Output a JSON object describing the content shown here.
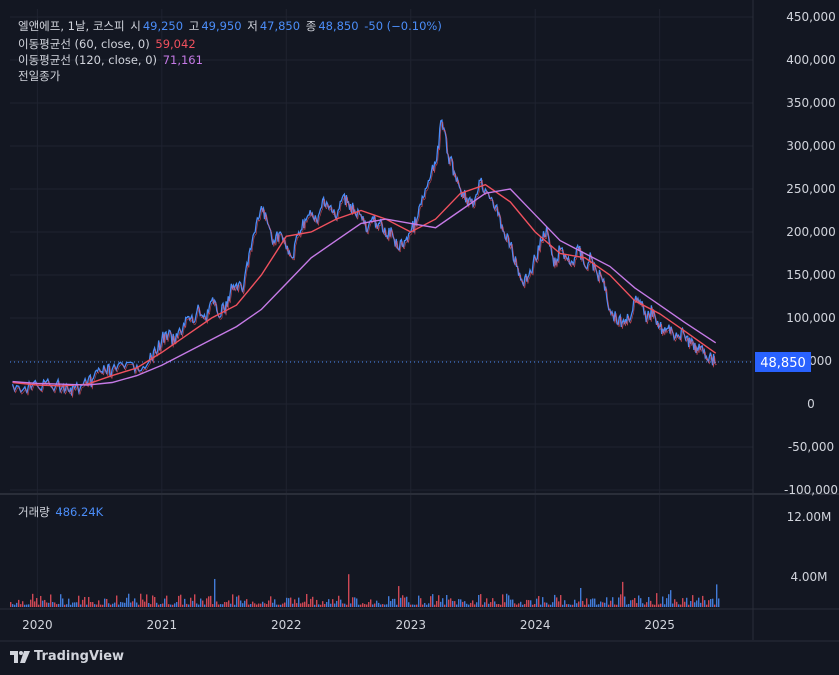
{
  "header": {
    "symbol_label": "엘앤에프, 1날, 코스피",
    "open_label": "시",
    "open_value": "49,250",
    "high_label": "고",
    "high_value": "49,950",
    "low_label": "저",
    "low_value": "47,850",
    "close_label": "종",
    "close_value": "48,850",
    "change_value": "-50 (−0.10%)"
  },
  "indicators": {
    "ma60_label": "이동평균선 (60, close, 0)",
    "ma60_value": "59,042",
    "ma120_label": "이동평균선 (120, close, 0)",
    "ma120_value": "71,161",
    "prev_close_label": "전일종가"
  },
  "volume": {
    "label": "거래량",
    "value": "486.24K"
  },
  "price_tag": "48,850",
  "brand": "TradingView",
  "colors": {
    "background": "#131722",
    "up": "#4b8df8",
    "down": "#f0515e",
    "ma60": "#f0515e",
    "ma120": "#c57ae6",
    "text": "#d1d4dc",
    "price_tag_bg": "#2962ff"
  },
  "chart_data": {
    "type": "line",
    "price_axis": {
      "ylim": [
        -100000,
        450000
      ],
      "ticks": [
        "450,000",
        "400,000",
        "350,000",
        "300,000",
        "250,000",
        "200,000",
        "150,000",
        "100,000",
        "50,000",
        "0",
        "-50,000",
        "-100,000"
      ],
      "tick_values": [
        450000,
        400000,
        350000,
        300000,
        250000,
        200000,
        150000,
        100000,
        50000,
        0,
        -50000,
        -100000
      ]
    },
    "volume_axis": {
      "ticks": [
        "12.00M",
        "4.00M"
      ],
      "tick_values": [
        12000000,
        4000000
      ]
    },
    "x_ticks": [
      "2020",
      "2021",
      "2022",
      "2023",
      "2024",
      "2025"
    ],
    "x_tick_values": [
      2020,
      2021,
      2022,
      2023,
      2024,
      2025
    ],
    "xlim": [
      2019.78,
      2025.75
    ],
    "last_close": 48850,
    "series": [
      {
        "key": "close",
        "x": [
          2019.8,
          2019.9,
          2020.0,
          2020.1,
          2020.2,
          2020.25,
          2020.3,
          2020.4,
          2020.45,
          2020.5,
          2020.55,
          2020.6,
          2020.7,
          2020.8,
          2020.9,
          2020.95,
          2021.0,
          2021.05,
          2021.1,
          2021.15,
          2021.2,
          2021.25,
          2021.3,
          2021.35,
          2021.4,
          2021.45,
          2021.5,
          2021.55,
          2021.6,
          2021.65,
          2021.7,
          2021.75,
          2021.8,
          2021.85,
          2021.9,
          2021.95,
          2022.0,
          2022.05,
          2022.1,
          2022.15,
          2022.2,
          2022.25,
          2022.3,
          2022.35,
          2022.4,
          2022.45,
          2022.5,
          2022.55,
          2022.6,
          2022.65,
          2022.7,
          2022.75,
          2022.8,
          2022.85,
          2022.9,
          2022.95,
          2023.0,
          2023.05,
          2023.1,
          2023.15,
          2023.2,
          2023.25,
          2023.3,
          2023.35,
          2023.4,
          2023.45,
          2023.5,
          2023.55,
          2023.6,
          2023.65,
          2023.7,
          2023.75,
          2023.8,
          2023.85,
          2023.9,
          2023.95,
          2024.0,
          2024.05,
          2024.1,
          2024.15,
          2024.2,
          2024.25,
          2024.3,
          2024.35,
          2024.4,
          2024.45,
          2024.5,
          2024.55,
          2024.6,
          2024.65,
          2024.7,
          2024.75,
          2024.8,
          2024.85,
          2024.9,
          2024.95,
          2025.0,
          2025.05,
          2025.1,
          2025.15,
          2025.2,
          2025.25,
          2025.3,
          2025.35,
          2025.4,
          2025.45
        ],
        "y": [
          23000,
          20000,
          21000,
          22000,
          20000,
          15000,
          18000,
          22000,
          30000,
          40000,
          38000,
          40000,
          42000,
          45000,
          50000,
          60000,
          75000,
          80000,
          72000,
          85000,
          100000,
          95000,
          110000,
          100000,
          120000,
          105000,
          110000,
          130000,
          140000,
          130000,
          175000,
          200000,
          230000,
          210000,
          190000,
          200000,
          180000,
          170000,
          200000,
          215000,
          220000,
          210000,
          240000,
          230000,
          215000,
          240000,
          235000,
          225000,
          220000,
          200000,
          215000,
          210000,
          195000,
          200000,
          180000,
          190000,
          200000,
          215000,
          240000,
          260000,
          280000,
          330000,
          290000,
          270000,
          250000,
          240000,
          230000,
          260000,
          250000,
          240000,
          220000,
          200000,
          185000,
          160000,
          140000,
          150000,
          170000,
          190000,
          200000,
          160000,
          180000,
          170000,
          165000,
          180000,
          160000,
          170000,
          150000,
          145000,
          110000,
          100000,
          95000,
          100000,
          120000,
          115000,
          100000,
          110000,
          90000,
          85000,
          85000,
          80000,
          80000,
          70000,
          65000,
          60000,
          55000,
          48850
        ]
      },
      {
        "key": "ma60",
        "x": [
          2019.8,
          2020.0,
          2020.2,
          2020.4,
          2020.6,
          2020.8,
          2021.0,
          2021.2,
          2021.4,
          2021.6,
          2021.8,
          2022.0,
          2022.2,
          2022.4,
          2022.6,
          2022.8,
          2023.0,
          2023.2,
          2023.4,
          2023.6,
          2023.8,
          2024.0,
          2024.2,
          2024.4,
          2024.6,
          2024.8,
          2025.0,
          2025.2,
          2025.45
        ],
        "y": [
          25000,
          22000,
          21000,
          23000,
          33000,
          42000,
          60000,
          80000,
          100000,
          115000,
          150000,
          195000,
          200000,
          215000,
          225000,
          215000,
          200000,
          215000,
          245000,
          255000,
          235000,
          200000,
          175000,
          170000,
          150000,
          120000,
          105000,
          85000,
          59042
        ]
      },
      {
        "key": "ma120",
        "x": [
          2019.8,
          2020.0,
          2020.2,
          2020.4,
          2020.6,
          2020.8,
          2021.0,
          2021.2,
          2021.4,
          2021.6,
          2021.8,
          2022.0,
          2022.2,
          2022.4,
          2022.6,
          2022.8,
          2023.0,
          2023.2,
          2023.4,
          2023.6,
          2023.8,
          2024.0,
          2024.2,
          2024.4,
          2024.6,
          2024.8,
          2025.0,
          2025.2,
          2025.45
        ],
        "y": [
          26000,
          24000,
          23000,
          22000,
          25000,
          33000,
          45000,
          60000,
          75000,
          90000,
          110000,
          140000,
          170000,
          190000,
          210000,
          215000,
          210000,
          205000,
          225000,
          245000,
          250000,
          220000,
          190000,
          175000,
          160000,
          135000,
          115000,
          95000,
          71161
        ]
      }
    ]
  }
}
